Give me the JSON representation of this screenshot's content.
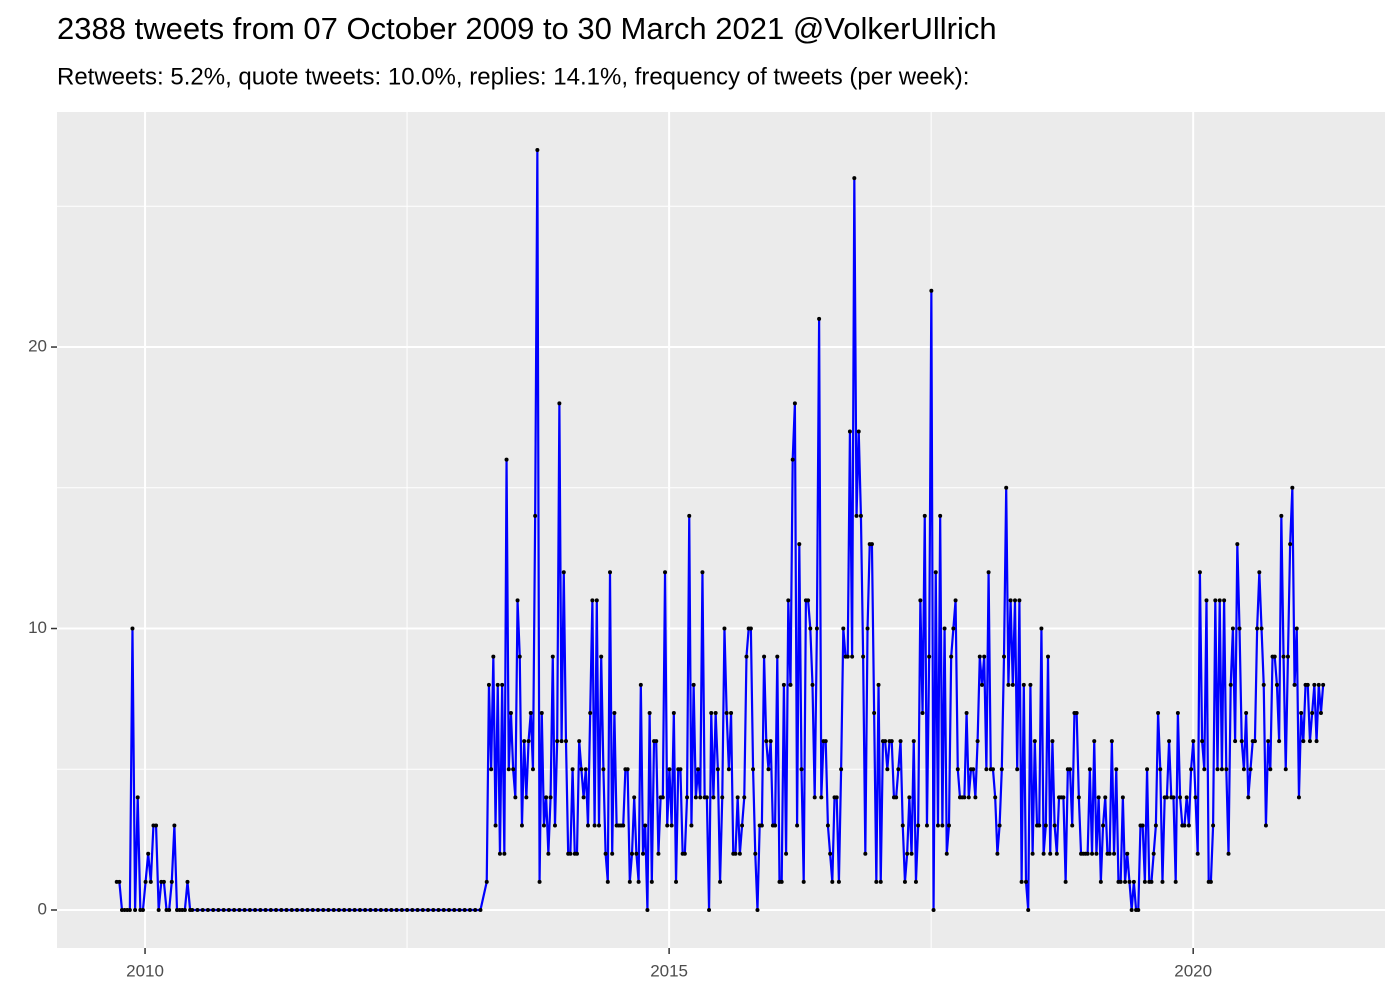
{
  "chart_data": {
    "type": "line",
    "title": "2388 tweets from 07 October 2009 to 30 March 2021 @VolkerUllrich",
    "subtitle": "Retweets: 5.2%, quote tweets: 10.0%, replies: 14.1%, frequency of tweets (per week):",
    "x": [
      2009.73,
      2009.755,
      2009.78,
      2009.805,
      2009.83,
      2009.855,
      2009.88,
      2009.905,
      2009.93,
      2009.955,
      2009.98,
      2010.005,
      2010.03,
      2010.055,
      2010.08,
      2010.105,
      2010.13,
      2010.155,
      2010.18,
      2010.205,
      2010.23,
      2010.255,
      2010.28,
      2010.305,
      2010.33,
      2010.355,
      2010.38,
      2010.405,
      2010.43,
      2010.45,
      2010.5,
      2010.55,
      2010.6,
      2010.65,
      2010.7,
      2010.75,
      2010.8,
      2010.85,
      2010.9,
      2010.95,
      2011,
      2011.05,
      2011.1,
      2011.15,
      2011.2,
      2011.25,
      2011.3,
      2011.35,
      2011.4,
      2011.45,
      2011.5,
      2011.55,
      2011.6,
      2011.65,
      2011.7,
      2011.75,
      2011.8,
      2011.85,
      2011.9,
      2011.95,
      2012,
      2012.05,
      2012.1,
      2012.15,
      2012.2,
      2012.25,
      2012.3,
      2012.35,
      2012.4,
      2012.45,
      2012.5,
      2012.55,
      2012.6,
      2012.65,
      2012.7,
      2012.75,
      2012.8,
      2012.85,
      2012.9,
      2012.95,
      2013,
      2013.05,
      2013.1,
      2013.15,
      2013.2,
      2013.26,
      2013.281,
      2013.302,
      2013.323,
      2013.344,
      2013.365,
      2013.386,
      2013.407,
      2013.428,
      2013.449,
      2013.47,
      2013.491,
      2013.512,
      2013.533,
      2013.554,
      2013.575,
      2013.596,
      2013.617,
      2013.638,
      2013.659,
      2013.68,
      2013.701,
      2013.722,
      2013.743,
      2013.764,
      2013.785,
      2013.806,
      2013.827,
      2013.848,
      2013.869,
      2013.89,
      2013.911,
      2013.932,
      2013.953,
      2013.974,
      2013.995,
      2014.016,
      2014.037,
      2014.058,
      2014.079,
      2014.1,
      2014.121,
      2014.142,
      2014.163,
      2014.184,
      2014.205,
      2014.226,
      2014.247,
      2014.268,
      2014.289,
      2014.31,
      2014.331,
      2014.352,
      2014.373,
      2014.394,
      2014.415,
      2014.436,
      2014.457,
      2014.478,
      2014.499,
      2014.52,
      2014.541,
      2014.562,
      2014.583,
      2014.604,
      2014.625,
      2014.646,
      2014.667,
      2014.688,
      2014.709,
      2014.73,
      2014.751,
      2014.772,
      2014.793,
      2014.814,
      2014.835,
      2014.856,
      2014.877,
      2014.898,
      2014.919,
      2014.94,
      2014.961,
      2014.982,
      2015.003,
      2015.024,
      2015.045,
      2015.066,
      2015.087,
      2015.108,
      2015.129,
      2015.15,
      2015.171,
      2015.192,
      2015.213,
      2015.234,
      2015.255,
      2015.276,
      2015.297,
      2015.318,
      2015.339,
      2015.36,
      2015.381,
      2015.402,
      2015.423,
      2015.444,
      2015.465,
      2015.486,
      2015.507,
      2015.528,
      2015.549,
      2015.57,
      2015.591,
      2015.612,
      2015.633,
      2015.654,
      2015.675,
      2015.696,
      2015.717,
      2015.738,
      2015.759,
      2015.78,
      2015.801,
      2015.822,
      2015.843,
      2015.864,
      2015.885,
      2015.906,
      2015.927,
      2015.948,
      2015.969,
      2015.99,
      2016.011,
      2016.032,
      2016.053,
      2016.074,
      2016.095,
      2016.116,
      2016.137,
      2016.158,
      2016.179,
      2016.2,
      2016.221,
      2016.242,
      2016.263,
      2016.284,
      2016.305,
      2016.326,
      2016.347,
      2016.368,
      2016.389,
      2016.41,
      2016.431,
      2016.452,
      2016.473,
      2016.494,
      2016.515,
      2016.536,
      2016.557,
      2016.578,
      2016.599,
      2016.62,
      2016.641,
      2016.662,
      2016.683,
      2016.704,
      2016.725,
      2016.746,
      2016.767,
      2016.788,
      2016.809,
      2016.83,
      2016.851,
      2016.872,
      2016.893,
      2016.914,
      2016.935,
      2016.956,
      2016.977,
      2016.998,
      2017.019,
      2017.04,
      2017.061,
      2017.082,
      2017.103,
      2017.124,
      2017.145,
      2017.166,
      2017.187,
      2017.208,
      2017.229,
      2017.25,
      2017.271,
      2017.292,
      2017.313,
      2017.334,
      2017.355,
      2017.376,
      2017.397,
      2017.418,
      2017.439,
      2017.46,
      2017.481,
      2017.502,
      2017.523,
      2017.544,
      2017.565,
      2017.586,
      2017.607,
      2017.628,
      2017.649,
      2017.67,
      2017.691,
      2017.712,
      2017.733,
      2017.754,
      2017.775,
      2017.796,
      2017.817,
      2017.838,
      2017.859,
      2017.88,
      2017.901,
      2017.922,
      2017.943,
      2017.964,
      2017.985,
      2018.006,
      2018.027,
      2018.048,
      2018.069,
      2018.09,
      2018.111,
      2018.132,
      2018.153,
      2018.174,
      2018.195,
      2018.216,
      2018.237,
      2018.258,
      2018.279,
      2018.3,
      2018.321,
      2018.342,
      2018.363,
      2018.384,
      2018.405,
      2018.426,
      2018.447,
      2018.468,
      2018.489,
      2018.51,
      2018.531,
      2018.552,
      2018.573,
      2018.594,
      2018.615,
      2018.636,
      2018.657,
      2018.678,
      2018.699,
      2018.72,
      2018.741,
      2018.762,
      2018.783,
      2018.804,
      2018.825,
      2018.846,
      2018.867,
      2018.888,
      2018.909,
      2018.93,
      2018.951,
      2018.972,
      2018.993,
      2019.014,
      2019.035,
      2019.056,
      2019.077,
      2019.098,
      2019.119,
      2019.14,
      2019.161,
      2019.182,
      2019.203,
      2019.224,
      2019.245,
      2019.266,
      2019.287,
      2019.308,
      2019.329,
      2019.35,
      2019.371,
      2019.392,
      2019.413,
      2019.434,
      2019.455,
      2019.476,
      2019.497,
      2019.518,
      2019.539,
      2019.56,
      2019.581,
      2019.602,
      2019.623,
      2019.644,
      2019.665,
      2019.686,
      2019.707,
      2019.728,
      2019.749,
      2019.77,
      2019.791,
      2019.812,
      2019.833,
      2019.854,
      2019.875,
      2019.896,
      2019.917,
      2019.938,
      2019.959,
      2019.98,
      2020.001,
      2020.022,
      2020.043,
      2020.064,
      2020.085,
      2020.106,
      2020.127,
      2020.148,
      2020.169,
      2020.19,
      2020.211,
      2020.232,
      2020.253,
      2020.274,
      2020.295,
      2020.316,
      2020.337,
      2020.358,
      2020.379,
      2020.4,
      2020.421,
      2020.442,
      2020.463,
      2020.484,
      2020.505,
      2020.526,
      2020.547,
      2020.568,
      2020.589,
      2020.61,
      2020.631,
      2020.652,
      2020.673,
      2020.694,
      2020.715,
      2020.736,
      2020.757,
      2020.778,
      2020.799,
      2020.82,
      2020.841,
      2020.862,
      2020.883,
      2020.904,
      2020.925,
      2020.946,
      2020.967,
      2020.988,
      2021.009,
      2021.03,
      2021.051,
      2021.072,
      2021.093,
      2021.114,
      2021.135,
      2021.156,
      2021.177,
      2021.198,
      2021.219,
      2021.24
    ],
    "series": [
      {
        "color": "#0000ff",
        "point_color": "#000000",
        "values": [
          1,
          1,
          0,
          0,
          0,
          0,
          10,
          0,
          4,
          0,
          0,
          1,
          2,
          1,
          3,
          3,
          0,
          1,
          1,
          0,
          0,
          1,
          3,
          0,
          0,
          0,
          0,
          1,
          0,
          0,
          0,
          0,
          0,
          0,
          0,
          0,
          0,
          0,
          0,
          0,
          0,
          0,
          0,
          0,
          0,
          0,
          0,
          0,
          0,
          0,
          0,
          0,
          0,
          0,
          0,
          0,
          0,
          0,
          0,
          0,
          0,
          0,
          0,
          0,
          0,
          0,
          0,
          0,
          0,
          0,
          0,
          0,
          0,
          0,
          0,
          0,
          0,
          0,
          0,
          0,
          0,
          0,
          0,
          0,
          0,
          1,
          8,
          5,
          9,
          3,
          8,
          2,
          8,
          2,
          16,
          5,
          7,
          5,
          4,
          11,
          9,
          3,
          6,
          4,
          6,
          7,
          5,
          14,
          27,
          1,
          7,
          3,
          4,
          2,
          4,
          9,
          3,
          6,
          18,
          6,
          12,
          6,
          2,
          2,
          5,
          2,
          2,
          6,
          5,
          4,
          5,
          3,
          7,
          11,
          3,
          11,
          3,
          9,
          5,
          2,
          1,
          12,
          2,
          7,
          3,
          3,
          3,
          3,
          5,
          5,
          1,
          2,
          4,
          2,
          1,
          8,
          2,
          3,
          0,
          7,
          1,
          6,
          6,
          2,
          4,
          4,
          12,
          3,
          5,
          3,
          7,
          1,
          5,
          5,
          2,
          2,
          4,
          14,
          3,
          8,
          4,
          5,
          4,
          12,
          4,
          4,
          0,
          7,
          4,
          7,
          5,
          1,
          4,
          10,
          7,
          5,
          7,
          2,
          2,
          4,
          2,
          3,
          4,
          9,
          10,
          10,
          5,
          2,
          0,
          3,
          3,
          9,
          6,
          5,
          6,
          3,
          3,
          9,
          1,
          1,
          8,
          2,
          11,
          8,
          16,
          18,
          3,
          13,
          5,
          1,
          11,
          11,
          10,
          8,
          4,
          10,
          21,
          4,
          6,
          6,
          3,
          2,
          1,
          4,
          4,
          1,
          5,
          10,
          9,
          9,
          17,
          9,
          26,
          14,
          17,
          14,
          9,
          2,
          10,
          13,
          13,
          7,
          1,
          8,
          1,
          6,
          6,
          5,
          6,
          6,
          4,
          4,
          5,
          6,
          3,
          1,
          2,
          4,
          2,
          6,
          1,
          3,
          11,
          7,
          14,
          3,
          9,
          22,
          0,
          12,
          3,
          14,
          3,
          10,
          2,
          3,
          9,
          10,
          11,
          5,
          4,
          4,
          4,
          7,
          4,
          5,
          5,
          4,
          6,
          9,
          8,
          9,
          5,
          12,
          5,
          5,
          4,
          2,
          3,
          5,
          9,
          15,
          8,
          11,
          8,
          11,
          5,
          11,
          1,
          8,
          1,
          0,
          8,
          2,
          6,
          3,
          3,
          10,
          2,
          3,
          9,
          2,
          6,
          3,
          2,
          4,
          4,
          4,
          1,
          5,
          5,
          3,
          7,
          7,
          4,
          2,
          2,
          2,
          2,
          5,
          2,
          6,
          2,
          4,
          1,
          3,
          4,
          2,
          2,
          6,
          2,
          5,
          1,
          1,
          4,
          1,
          2,
          1,
          0,
          1,
          0,
          0,
          3,
          3,
          1,
          5,
          1,
          1,
          2,
          3,
          7,
          5,
          1,
          4,
          4,
          6,
          4,
          4,
          1,
          7,
          4,
          3,
          3,
          4,
          3,
          5,
          6,
          4,
          2,
          12,
          6,
          5,
          11,
          1,
          1,
          3,
          11,
          5,
          11,
          5,
          11,
          5,
          2,
          8,
          10,
          6,
          13,
          10,
          6,
          5,
          7,
          4,
          5,
          6,
          6,
          10,
          12,
          10,
          8,
          3,
          6,
          5,
          9,
          9,
          8,
          6,
          14,
          9,
          5,
          9,
          13,
          15,
          8,
          10,
          4,
          7,
          6,
          8,
          8,
          6,
          7,
          8,
          6,
          8,
          7,
          8
        ]
      }
    ],
    "xlim": [
      2009.16,
      2021.83
    ],
    "xticks": [
      2010,
      2015,
      2020
    ],
    "xminor": [
      2012.5,
      2017.5
    ],
    "ylim": [
      -1.35,
      28.35
    ],
    "yticks": [
      0,
      10,
      20
    ],
    "yminor": [
      5,
      15,
      25
    ],
    "grid": true,
    "background": "#ebebeb"
  }
}
